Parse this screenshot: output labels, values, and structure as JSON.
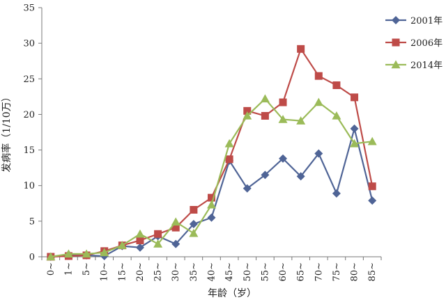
{
  "chart_data": {
    "type": "line",
    "title": "",
    "xlabel": "年龄（岁）",
    "ylabel": "发病率（1/10万）",
    "ylim": [
      0,
      35
    ],
    "yticks": [
      0,
      5,
      10,
      15,
      20,
      25,
      30,
      35
    ],
    "grid": false,
    "legend_position": "top-right",
    "categories": [
      "0~",
      "1~",
      "5~",
      "10~",
      "15~",
      "20~",
      "25~",
      "30~",
      "35~",
      "40~",
      "45~",
      "50~",
      "55~",
      "60~",
      "65~",
      "70~",
      "75~",
      "80~",
      "85~"
    ],
    "series": [
      {
        "name": "2001年",
        "color": "#4f6496",
        "marker": "diamond",
        "values": [
          0,
          0.3,
          0.2,
          0.1,
          1.5,
          1.3,
          2.9,
          1.8,
          4.6,
          5.5,
          13.5,
          9.6,
          11.5,
          13.8,
          11.3,
          14.5,
          8.9,
          18.0,
          7.9
        ]
      },
      {
        "name": "2006年",
        "color": "#be4b48",
        "marker": "square",
        "values": [
          0,
          0.1,
          0.2,
          0.8,
          1.6,
          2.3,
          3.2,
          4.1,
          6.6,
          8.3,
          13.7,
          20.5,
          19.8,
          21.7,
          29.2,
          25.4,
          24.1,
          22.4,
          9.9
        ]
      },
      {
        "name": "2014年",
        "color": "#9bbb59",
        "marker": "triangle",
        "values": [
          0,
          0.4,
          0.4,
          0.6,
          1.6,
          3.2,
          1.8,
          4.9,
          3.3,
          7.3,
          15.9,
          19.8,
          22.2,
          19.3,
          19.1,
          21.7,
          19.8,
          15.9,
          16.2
        ]
      }
    ]
  }
}
